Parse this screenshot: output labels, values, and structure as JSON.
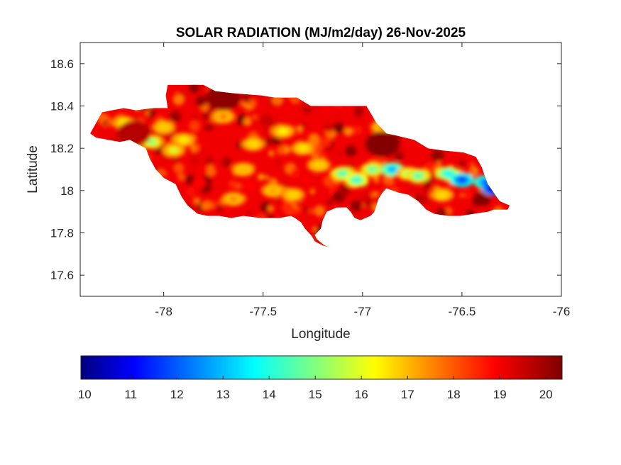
{
  "chart_data": {
    "type": "heatmap",
    "title": "SOLAR RADIATION (MJ/m2/day) 26-Nov-2025",
    "xlabel": "Longitude",
    "ylabel": "Latitude",
    "xlim": [
      -78.42,
      -76
    ],
    "ylim": [
      17.5,
      18.7
    ],
    "xticks": [
      -78,
      -77.5,
      -77,
      -76.5,
      -76
    ],
    "xtick_labels": [
      "-78",
      "-77.5",
      "-77",
      "-76.5",
      "-76"
    ],
    "yticks": [
      17.6,
      17.8,
      18,
      18.2,
      18.4,
      18.6
    ],
    "ytick_labels": [
      "17.6",
      "17.8",
      "18",
      "18.2",
      "18.4",
      "18.6"
    ],
    "grid": false,
    "colormap": "jet",
    "colorbar": {
      "location": "bottom",
      "clim": [
        9.92,
        20.35
      ],
      "ticks": [
        10,
        11,
        12,
        13,
        14,
        15,
        16,
        17,
        18,
        19,
        20
      ],
      "tick_labels": [
        "10",
        "11",
        "12",
        "13",
        "14",
        "15",
        "16",
        "17",
        "18",
        "19",
        "20"
      ]
    },
    "background_value": 19.2,
    "region": "Jamaica",
    "coastline": [
      [
        -78.37,
        18.27
      ],
      [
        -78.34,
        18.32
      ],
      [
        -78.31,
        18.37
      ],
      [
        -78.26,
        18.38
      ],
      [
        -78.2,
        18.39
      ],
      [
        -78.14,
        18.38
      ],
      [
        -78.05,
        18.39
      ],
      [
        -77.98,
        18.39
      ],
      [
        -77.99,
        18.45
      ],
      [
        -77.98,
        18.5
      ],
      [
        -77.8,
        18.5
      ],
      [
        -77.74,
        18.47
      ],
      [
        -77.65,
        18.46
      ],
      [
        -77.51,
        18.45
      ],
      [
        -77.44,
        18.44
      ],
      [
        -77.33,
        18.44
      ],
      [
        -77.26,
        18.4
      ],
      [
        -77.12,
        18.4
      ],
      [
        -76.98,
        18.4
      ],
      [
        -76.93,
        18.32
      ],
      [
        -76.88,
        18.27
      ],
      [
        -76.83,
        18.26
      ],
      [
        -76.74,
        18.24
      ],
      [
        -76.67,
        18.2
      ],
      [
        -76.6,
        18.19
      ],
      [
        -76.49,
        18.18
      ],
      [
        -76.43,
        18.16
      ],
      [
        -76.4,
        18.11
      ],
      [
        -76.37,
        18.03
      ],
      [
        -76.31,
        17.95
      ],
      [
        -76.26,
        17.93
      ],
      [
        -76.27,
        17.91
      ],
      [
        -76.34,
        17.91
      ],
      [
        -76.37,
        17.9
      ],
      [
        -76.44,
        17.89
      ],
      [
        -76.51,
        17.88
      ],
      [
        -76.57,
        17.88
      ],
      [
        -76.64,
        17.89
      ],
      [
        -76.68,
        17.91
      ],
      [
        -76.72,
        17.95
      ],
      [
        -76.77,
        17.98
      ],
      [
        -76.82,
        17.99
      ],
      [
        -76.88,
        18.01
      ],
      [
        -76.9,
        17.99
      ],
      [
        -76.92,
        17.96
      ],
      [
        -76.94,
        17.9
      ],
      [
        -76.96,
        17.88
      ],
      [
        -77.01,
        17.86
      ],
      [
        -77.04,
        17.87
      ],
      [
        -77.06,
        17.9
      ],
      [
        -77.08,
        17.92
      ],
      [
        -77.13,
        17.92
      ],
      [
        -77.18,
        17.9
      ],
      [
        -77.2,
        17.86
      ],
      [
        -77.21,
        17.82
      ],
      [
        -77.24,
        17.79
      ],
      [
        -77.23,
        17.77
      ],
      [
        -77.19,
        17.74
      ],
      [
        -77.16,
        17.73
      ],
      [
        -77.2,
        17.74
      ],
      [
        -77.24,
        17.76
      ],
      [
        -77.26,
        17.79
      ],
      [
        -77.29,
        17.82
      ],
      [
        -77.31,
        17.85
      ],
      [
        -77.34,
        17.87
      ],
      [
        -77.36,
        17.88
      ],
      [
        -77.42,
        17.87
      ],
      [
        -77.51,
        17.87
      ],
      [
        -77.6,
        17.88
      ],
      [
        -77.66,
        17.87
      ],
      [
        -77.72,
        17.88
      ],
      [
        -77.78,
        17.88
      ],
      [
        -77.83,
        17.89
      ],
      [
        -77.88,
        17.93
      ],
      [
        -77.91,
        17.97
      ],
      [
        -77.94,
        18.03
      ],
      [
        -78.0,
        18.06
      ],
      [
        -78.04,
        18.1
      ],
      [
        -78.07,
        18.15
      ],
      [
        -78.09,
        18.2
      ],
      [
        -78.13,
        18.22
      ],
      [
        -78.17,
        18.24
      ],
      [
        -78.22,
        18.23
      ],
      [
        -78.28,
        18.24
      ],
      [
        -78.34,
        18.25
      ]
    ],
    "features": [
      {
        "lon": -78.2,
        "lat": 18.32,
        "value": 16.5
      },
      {
        "lon": -78.06,
        "lat": 18.23,
        "value": 15.2
      },
      {
        "lon": -77.95,
        "lat": 18.19,
        "value": 16.0
      },
      {
        "lon": -77.9,
        "lat": 18.24,
        "value": 16.6
      },
      {
        "lon": -77.55,
        "lat": 18.22,
        "value": 16.8
      },
      {
        "lon": -77.4,
        "lat": 18.28,
        "value": 16.5
      },
      {
        "lon": -77.3,
        "lat": 18.2,
        "value": 16.7
      },
      {
        "lon": -77.22,
        "lat": 18.12,
        "value": 17.0
      },
      {
        "lon": -77.1,
        "lat": 18.08,
        "value": 14.6
      },
      {
        "lon": -77.03,
        "lat": 18.05,
        "value": 14.2
      },
      {
        "lon": -76.95,
        "lat": 18.1,
        "value": 14.8
      },
      {
        "lon": -76.85,
        "lat": 18.1,
        "value": 13.0
      },
      {
        "lon": -76.77,
        "lat": 18.08,
        "value": 15.2
      },
      {
        "lon": -76.72,
        "lat": 18.07,
        "value": 14.6
      },
      {
        "lon": -76.57,
        "lat": 18.08,
        "value": 13.8
      },
      {
        "lon": -76.5,
        "lat": 18.05,
        "value": 11.8
      },
      {
        "lon": -76.38,
        "lat": 18.04,
        "value": 12.2
      },
      {
        "lon": -76.34,
        "lat": 18.01,
        "value": 10.4
      },
      {
        "lon": -76.6,
        "lat": 17.98,
        "value": 16.8
      },
      {
        "lon": -77.6,
        "lat": 18.1,
        "value": 17.2
      },
      {
        "lon": -77.45,
        "lat": 18.0,
        "value": 17.4
      },
      {
        "lon": -77.35,
        "lat": 17.98,
        "value": 16.9
      },
      {
        "lon": -77.65,
        "lat": 17.96,
        "value": 17.8
      },
      {
        "lon": -76.9,
        "lat": 18.3,
        "value": 17.8
      },
      {
        "lon": -77.7,
        "lat": 18.35,
        "value": 18.0
      },
      {
        "lon": -78.0,
        "lat": 18.3,
        "value": 17.0
      },
      {
        "lon": -77.15,
        "lat": 17.8,
        "value": 20.3
      },
      {
        "lon": -76.9,
        "lat": 18.22,
        "value": 20.3
      },
      {
        "lon": -77.7,
        "lat": 18.44,
        "value": 20.2
      },
      {
        "lon": -78.15,
        "lat": 18.27,
        "value": 19.8
      }
    ]
  }
}
